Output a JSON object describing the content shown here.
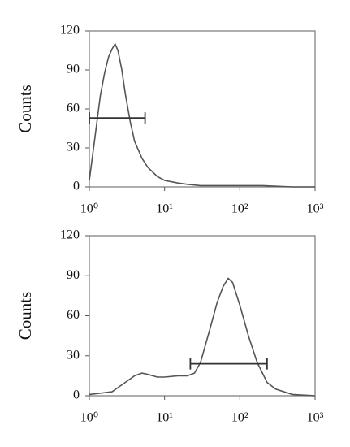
{
  "chart_data": [
    {
      "type": "line",
      "y_label": "Counts",
      "log_x": true,
      "color": "#555555",
      "x": [
        1,
        1.2,
        1.4,
        1.6,
        1.8,
        2.0,
        2.2,
        2.4,
        2.7,
        3,
        3.5,
        4,
        5,
        6,
        8,
        10,
        15,
        20,
        30,
        50,
        100,
        200,
        500,
        1000
      ],
      "values": [
        5,
        40,
        70,
        88,
        100,
        106,
        110,
        105,
        90,
        72,
        50,
        35,
        22,
        15,
        8,
        5,
        3,
        2,
        1,
        1,
        1,
        1,
        0,
        0
      ],
      "xlim": [
        1,
        1000
      ],
      "xticks": [
        {
          "value": 1,
          "label": "10⁰"
        },
        {
          "value": 10,
          "label": "10¹"
        },
        {
          "value": 100,
          "label": "10²"
        },
        {
          "value": 1000,
          "label": "10³"
        }
      ],
      "ylim": [
        0,
        120
      ],
      "yticks": [
        0,
        30,
        60,
        90,
        120
      ],
      "gate": {
        "x": [
          1,
          5.5
        ],
        "y": 53,
        "color": "#333333"
      }
    },
    {
      "type": "line",
      "y_label": "Counts",
      "log_x": true,
      "color": "#555555",
      "x": [
        1,
        2,
        3,
        4,
        5,
        6,
        8,
        10,
        15,
        20,
        25,
        30,
        40,
        50,
        60,
        70,
        80,
        100,
        130,
        170,
        230,
        300,
        500,
        1000
      ],
      "values": [
        1,
        3,
        10,
        15,
        17,
        16,
        14,
        14,
        15,
        15,
        17,
        25,
        50,
        70,
        82,
        88,
        85,
        68,
        45,
        25,
        10,
        5,
        1,
        0
      ],
      "xlim": [
        1,
        1000
      ],
      "xticks": [
        {
          "value": 1,
          "label": "10⁰"
        },
        {
          "value": 10,
          "label": "10¹"
        },
        {
          "value": 100,
          "label": "10²"
        },
        {
          "value": 1000,
          "label": "10³"
        }
      ],
      "ylim": [
        0,
        120
      ],
      "yticks": [
        0,
        30,
        60,
        90,
        120
      ],
      "gate": {
        "x": [
          22,
          230
        ],
        "y": 24,
        "color": "#333333"
      }
    }
  ]
}
